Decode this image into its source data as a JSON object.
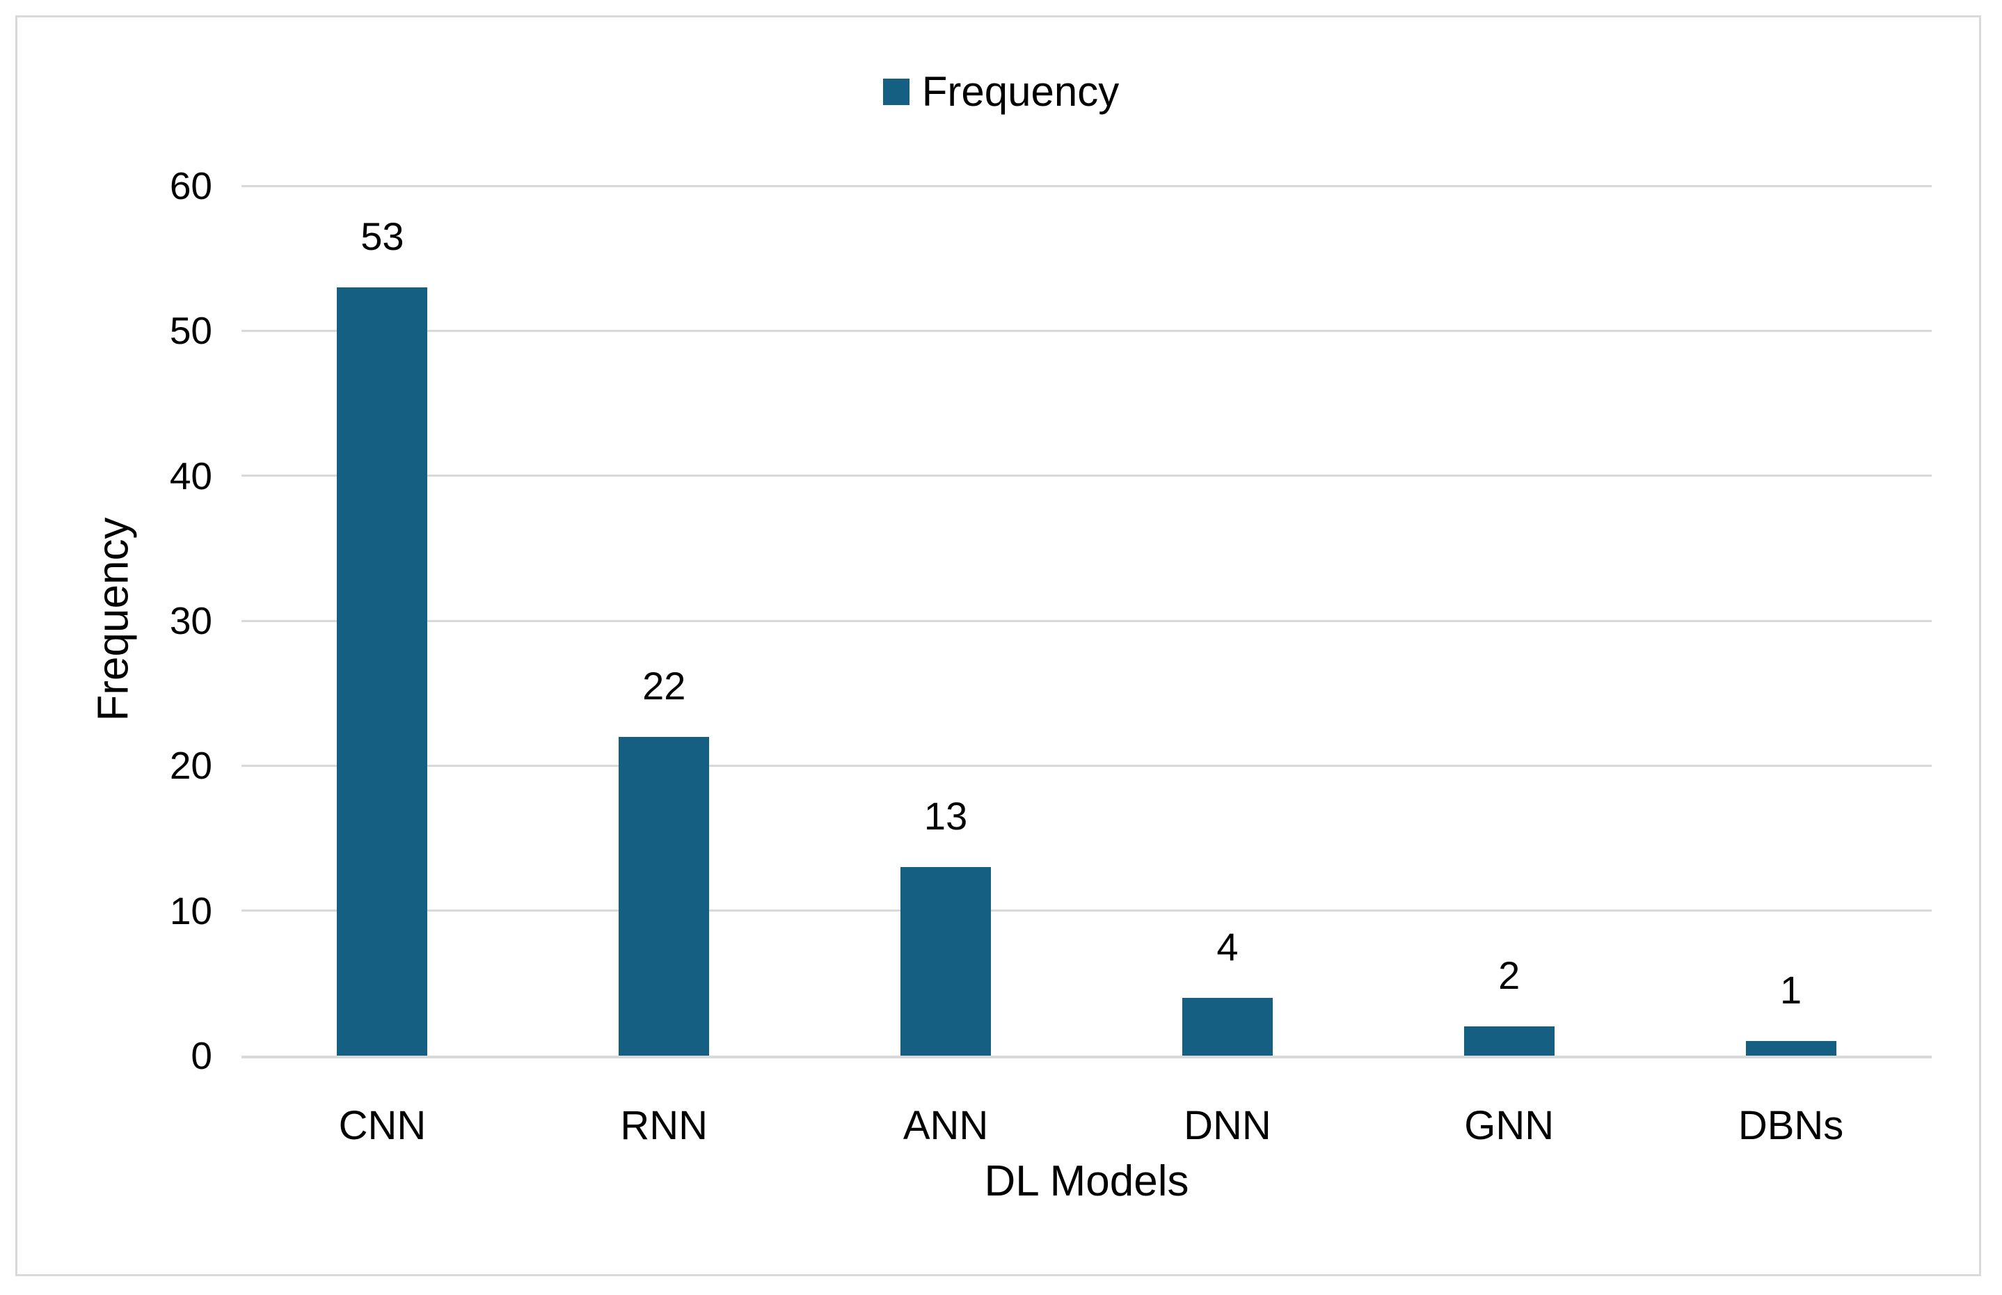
{
  "chart_data": {
    "type": "bar",
    "title": "",
    "categories": [
      "CNN",
      "RNN",
      "ANN",
      "DNN",
      "GNN",
      "DBNs"
    ],
    "series": [
      {
        "name": "Frequency",
        "values": [
          53,
          22,
          13,
          4,
          2,
          1
        ]
      }
    ],
    "data_labels": [
      53,
      22,
      13,
      4,
      2,
      1
    ],
    "xlabel": "DL Models",
    "ylabel": "Frequency",
    "ylim": [
      0,
      60
    ],
    "yticks": [
      0,
      10,
      20,
      30,
      40,
      50,
      60
    ],
    "grid": "horizontal-on",
    "legend_position": "top-center",
    "colors": {
      "bar": "#156082",
      "gridline": "#d9d9d9",
      "axis_line": "#d9d9d9",
      "figure_border": "#d9d9d9",
      "text": "#000000",
      "background": "#ffffff"
    }
  },
  "legend": {
    "items": [
      {
        "label": "Frequency",
        "color": "#156082"
      }
    ]
  }
}
